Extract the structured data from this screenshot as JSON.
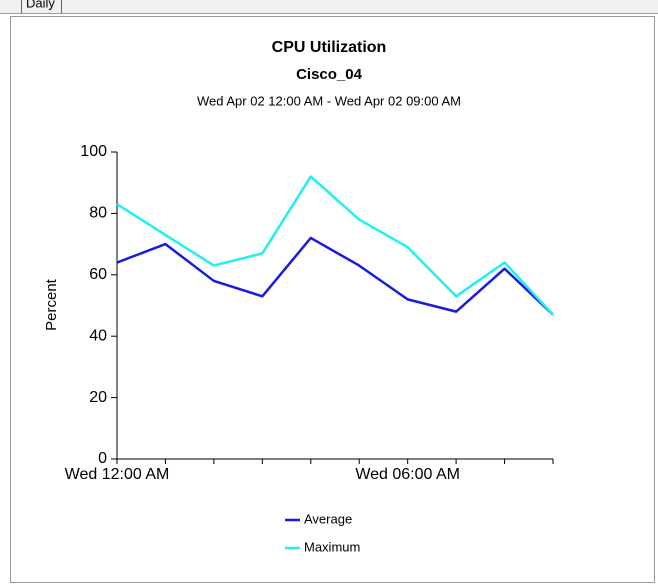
{
  "tab": "Daily",
  "chart_data": {
    "type": "line",
    "title": "CPU Utilization",
    "subtitle": "Cisco_04",
    "date_range": "Wed Apr 02 12:00 AM - Wed Apr 02 09:00 AM",
    "ylabel": "Percent",
    "categories": [
      "Wed 12:00 AM",
      null,
      null,
      null,
      null,
      null,
      "Wed 06:00 AM",
      null,
      null,
      null
    ],
    "series": [
      {
        "name": "Average",
        "color": "#1a1ae0",
        "values": [
          64,
          70,
          58,
          53,
          72,
          63,
          52,
          48,
          62,
          47
        ]
      },
      {
        "name": "Maximum",
        "color": "#20f0f0",
        "values": [
          83,
          73,
          63,
          67,
          92,
          78,
          69,
          53,
          64,
          47
        ]
      }
    ],
    "ylim": [
      0,
      100
    ],
    "yticks": [
      0,
      20,
      40,
      60,
      80,
      100
    ]
  }
}
